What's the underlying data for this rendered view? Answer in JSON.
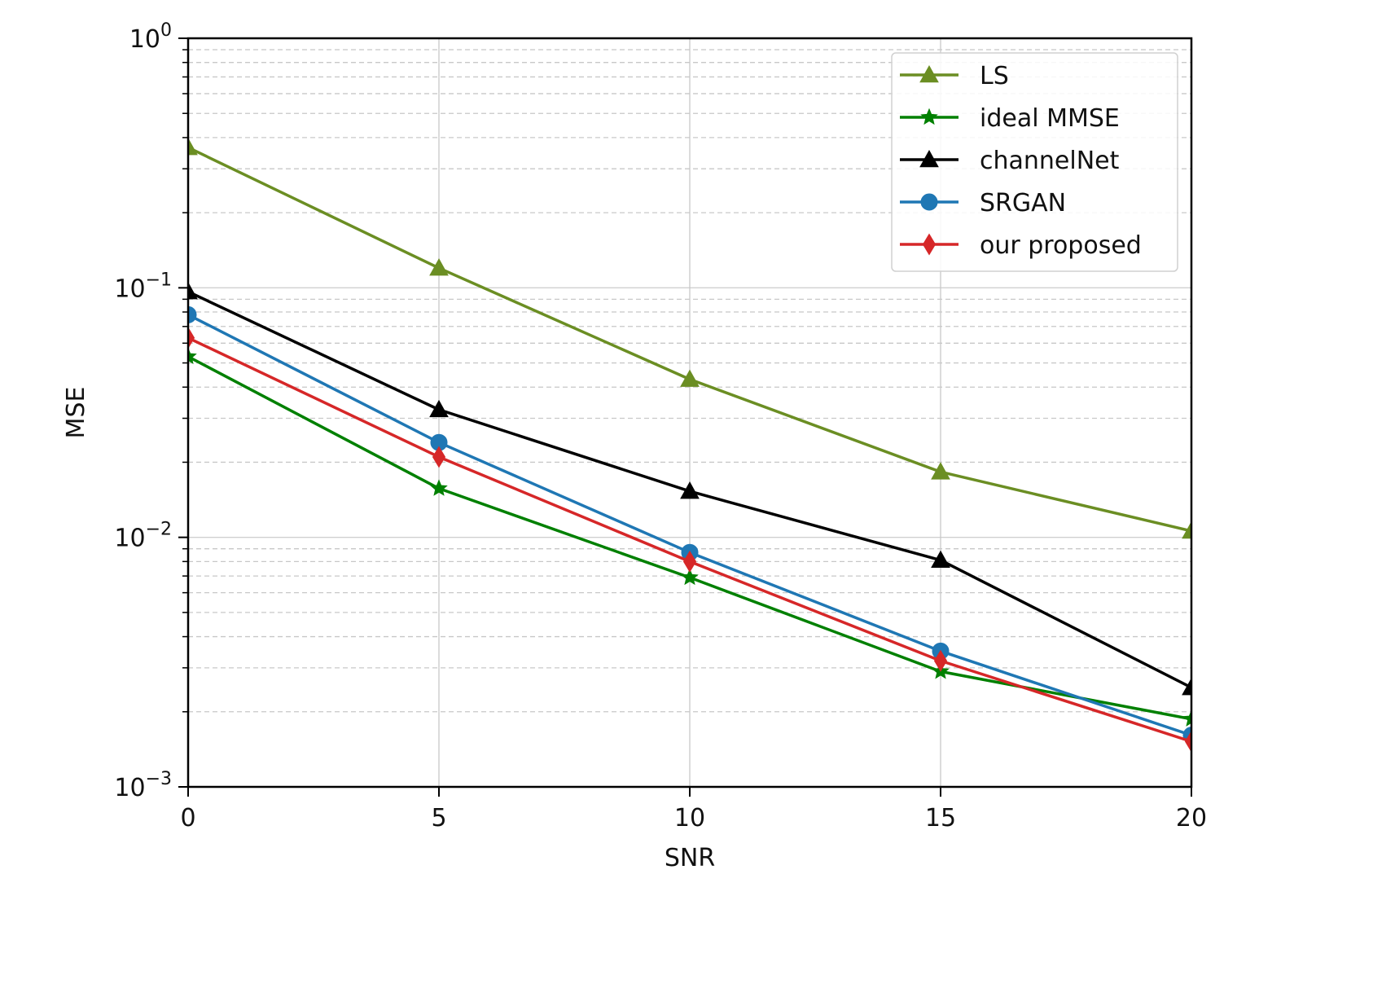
{
  "chart_data": {
    "type": "line",
    "title": "",
    "xlabel": "SNR",
    "ylabel": "MSE",
    "x": [
      0,
      5,
      10,
      15,
      20
    ],
    "xlim": [
      0,
      20
    ],
    "ylim": [
      0.001,
      1
    ],
    "yscale": "log",
    "x_ticks": [
      "0",
      "5",
      "10",
      "15",
      "20"
    ],
    "y_ticks": [
      {
        "value": 1,
        "base": "10",
        "exp": "0"
      },
      {
        "value": 0.1,
        "base": "10",
        "exp": "−1"
      },
      {
        "value": 0.01,
        "base": "10",
        "exp": "−2"
      },
      {
        "value": 0.001,
        "base": "10",
        "exp": "−3"
      }
    ],
    "grid": {
      "major_x": true,
      "major_y": true,
      "minor_y_dashed": true
    },
    "legend_position": "upper right",
    "series": [
      {
        "name": "LS",
        "color": "#6b8e23",
        "marker": "triangle-up",
        "values": [
          0.365,
          0.12,
          0.043,
          0.0183,
          0.0106
        ]
      },
      {
        "name": "ideal MMSE",
        "color": "#008000",
        "marker": "star",
        "values": [
          0.053,
          0.0157,
          0.0069,
          0.0029,
          0.00187
        ]
      },
      {
        "name": "channelNet",
        "color": "#000000",
        "marker": "triangle-up",
        "values": [
          0.0965,
          0.0325,
          0.0153,
          0.0081,
          0.0025
        ]
      },
      {
        "name": "SRGAN",
        "color": "#1f77b4",
        "marker": "circle",
        "values": [
          0.078,
          0.024,
          0.0087,
          0.0035,
          0.00161
        ]
      },
      {
        "name": "our proposed",
        "color": "#d62728",
        "marker": "diamond",
        "values": [
          0.063,
          0.021,
          0.008,
          0.0032,
          0.00152
        ]
      }
    ]
  }
}
